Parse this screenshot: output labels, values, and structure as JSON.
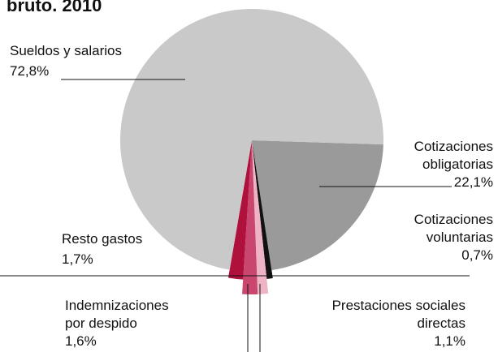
{
  "chart_data": {
    "type": "pie",
    "title": "bruto. 2010",
    "categories": [
      [
        "Cotizaciones",
        "obligatorias"
      ],
      [
        "Cotizaciones",
        "voluntarias"
      ],
      [
        "Prestaciones sociales",
        "directas"
      ],
      [
        "Indemnizaciones",
        "por despido"
      ],
      [
        "Resto gastos"
      ],
      [
        "Sueldos y salarios"
      ]
    ],
    "values": [
      22.1,
      0.7,
      1.1,
      1.6,
      1.7,
      72.8
    ],
    "value_labels": [
      "22,1%",
      "0,7%",
      "1,1%",
      "1,6%",
      "1,7%",
      "72,8%"
    ],
    "colors": [
      "#9a9a9a",
      "#111111",
      "#efb3c6",
      "#c9476e",
      "#b0103c",
      "#c9c9c9"
    ]
  }
}
